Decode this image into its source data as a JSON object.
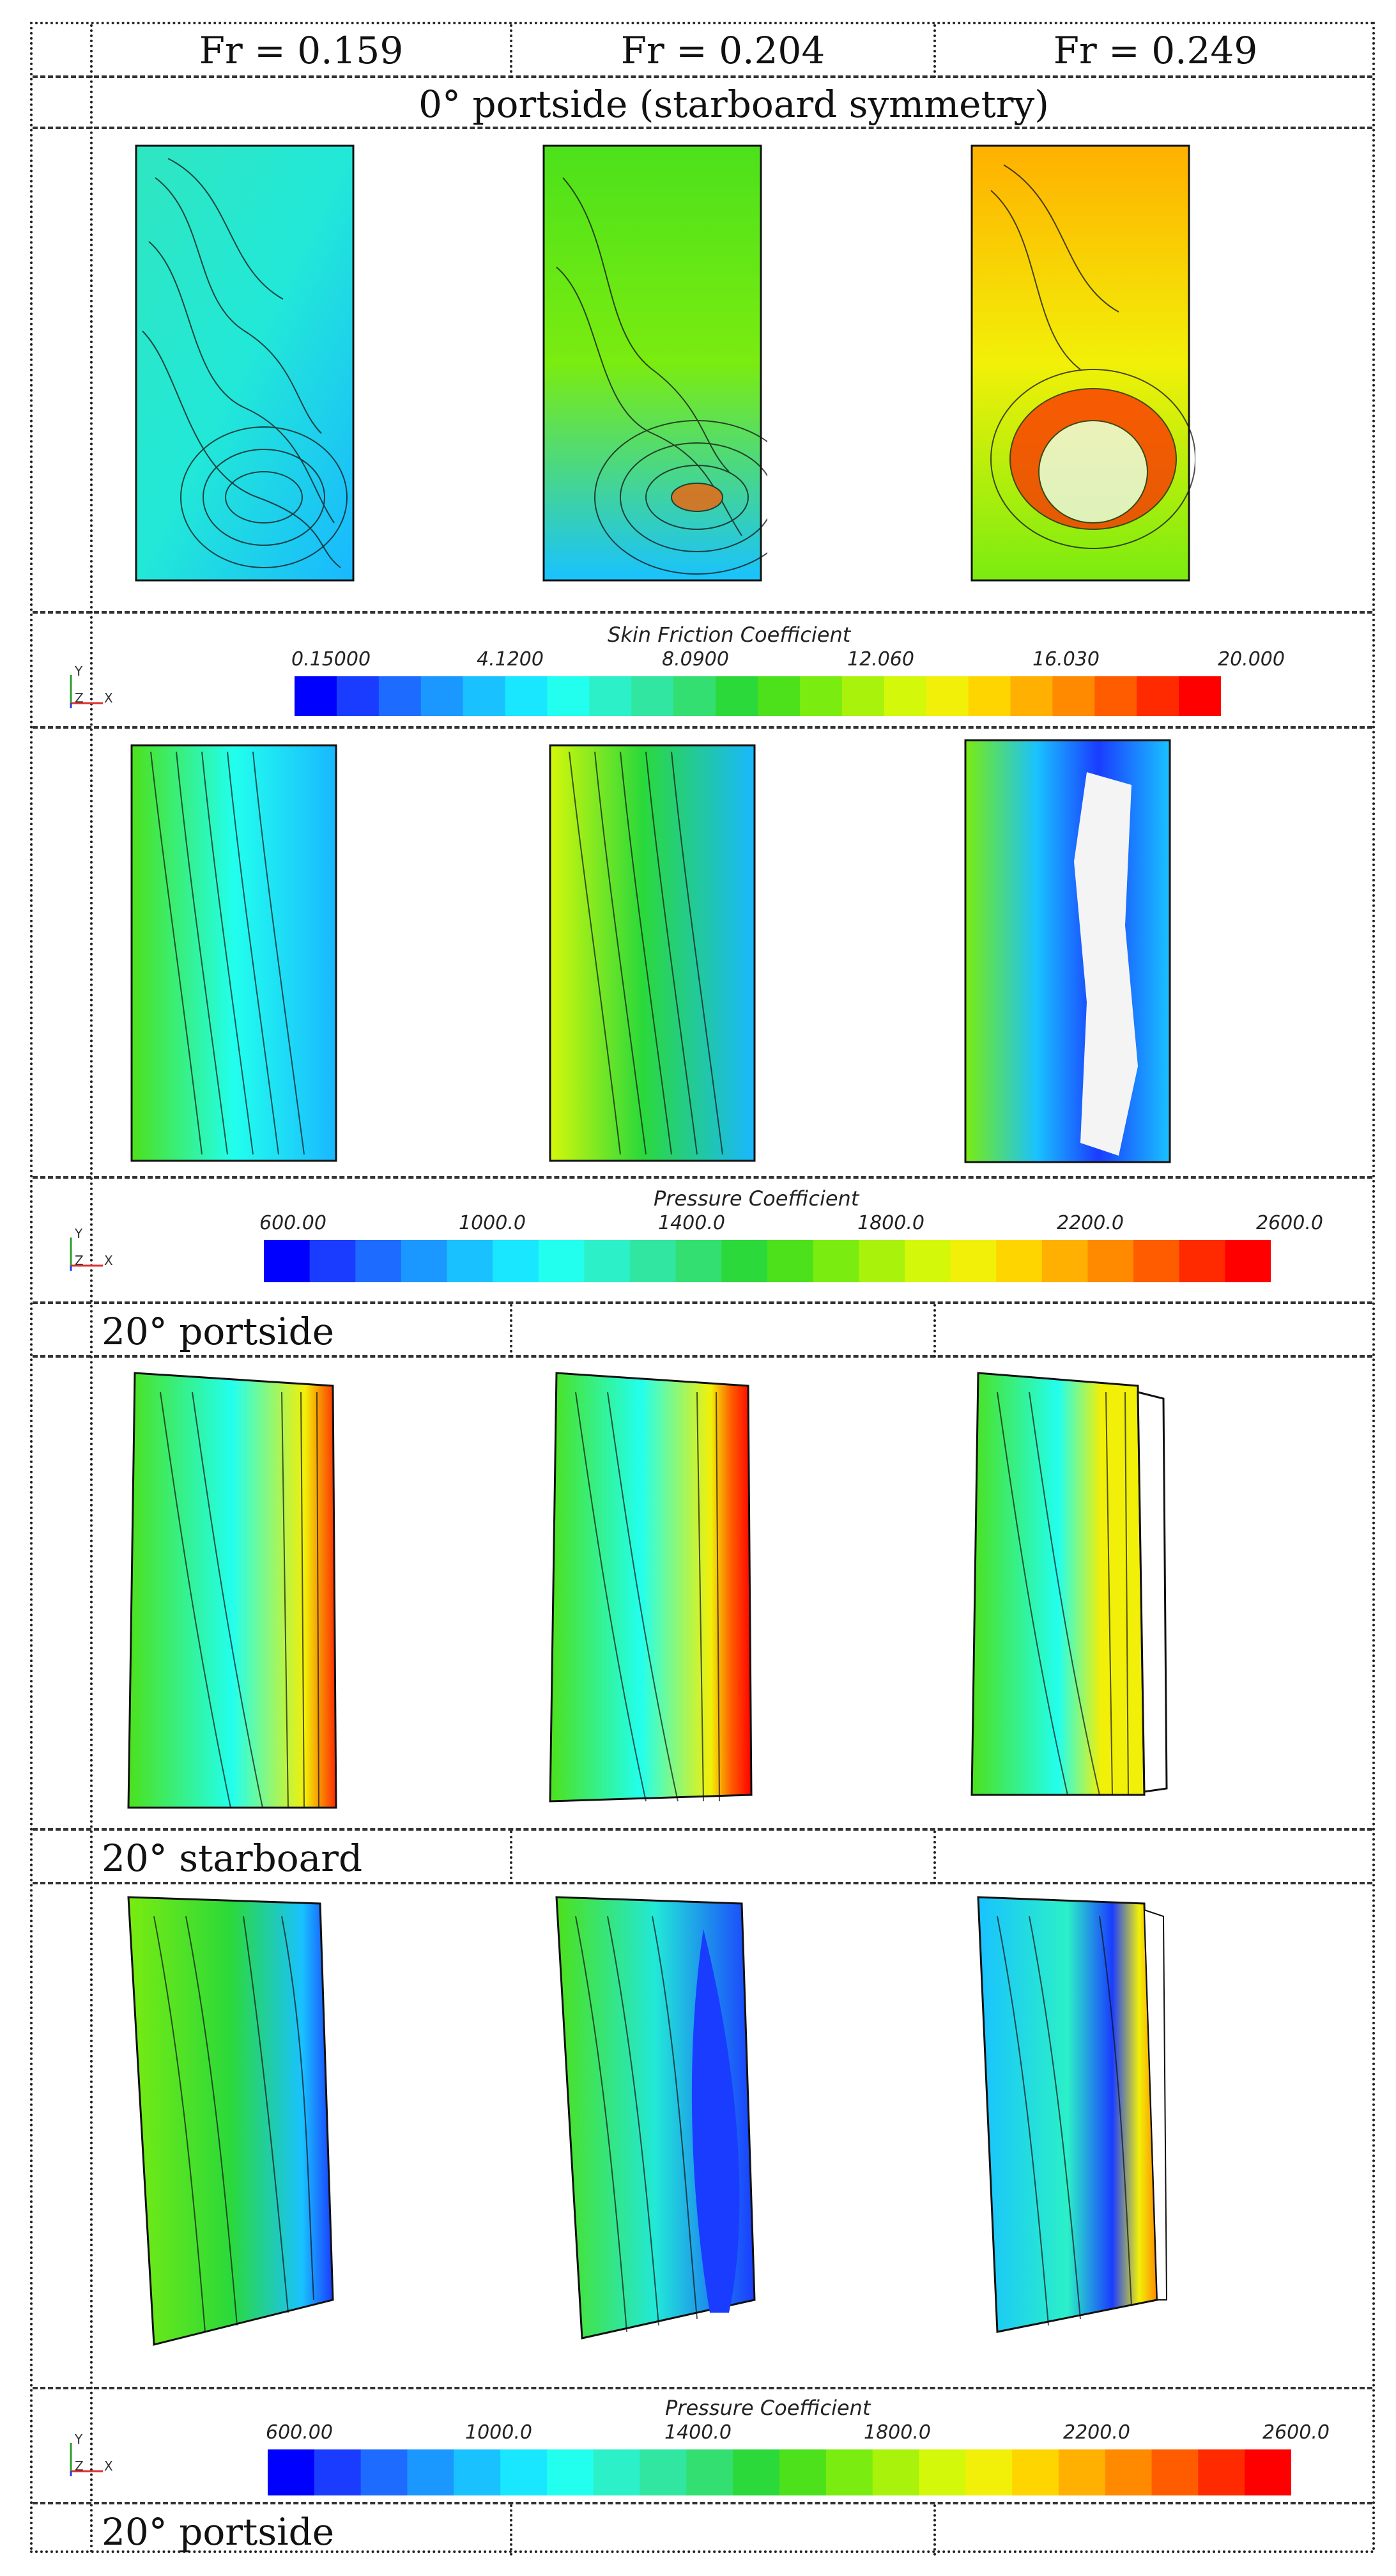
{
  "header": {
    "columns": [
      "Fr = 0.159",
      "Fr = 0.204",
      "Fr = 0.249"
    ]
  },
  "sections": {
    "s0": "0° portside (starboard symmetry)",
    "s1": "20° portside",
    "s2": "20° starboard",
    "s3": "20° portside"
  },
  "colorbars": {
    "skin": {
      "title": "Skin Friction Coefficient",
      "ticks": [
        "0.15000",
        "4.1200",
        "8.0900",
        "12.060",
        "16.030",
        "20.000"
      ]
    },
    "pressure1": {
      "title": "Pressure Coefficient",
      "ticks": [
        "600.00",
        "1000.0",
        "1400.0",
        "1800.0",
        "2200.0",
        "2600.0"
      ]
    },
    "pressure2": {
      "title": "Pressure Coefficient",
      "ticks": [
        "600.00",
        "1000.0",
        "1400.0",
        "1800.0",
        "2200.0",
        "2600.0"
      ]
    }
  },
  "axes_labels": {
    "y": "Y",
    "z": "Z",
    "x": "X"
  },
  "colors": {
    "scale": [
      "#0000ff",
      "#1a3cff",
      "#1e6bff",
      "#1b98ff",
      "#19c2ff",
      "#19e6ff",
      "#22ffee",
      "#2bf0c8",
      "#30e6a0",
      "#33df70",
      "#2bd93a",
      "#4ce11b",
      "#7aec10",
      "#a8f20c",
      "#d4f80a",
      "#f2f008",
      "#ffd500",
      "#ffb000",
      "#ff8a00",
      "#ff5c00",
      "#ff2a00",
      "#ff0000"
    ]
  }
}
